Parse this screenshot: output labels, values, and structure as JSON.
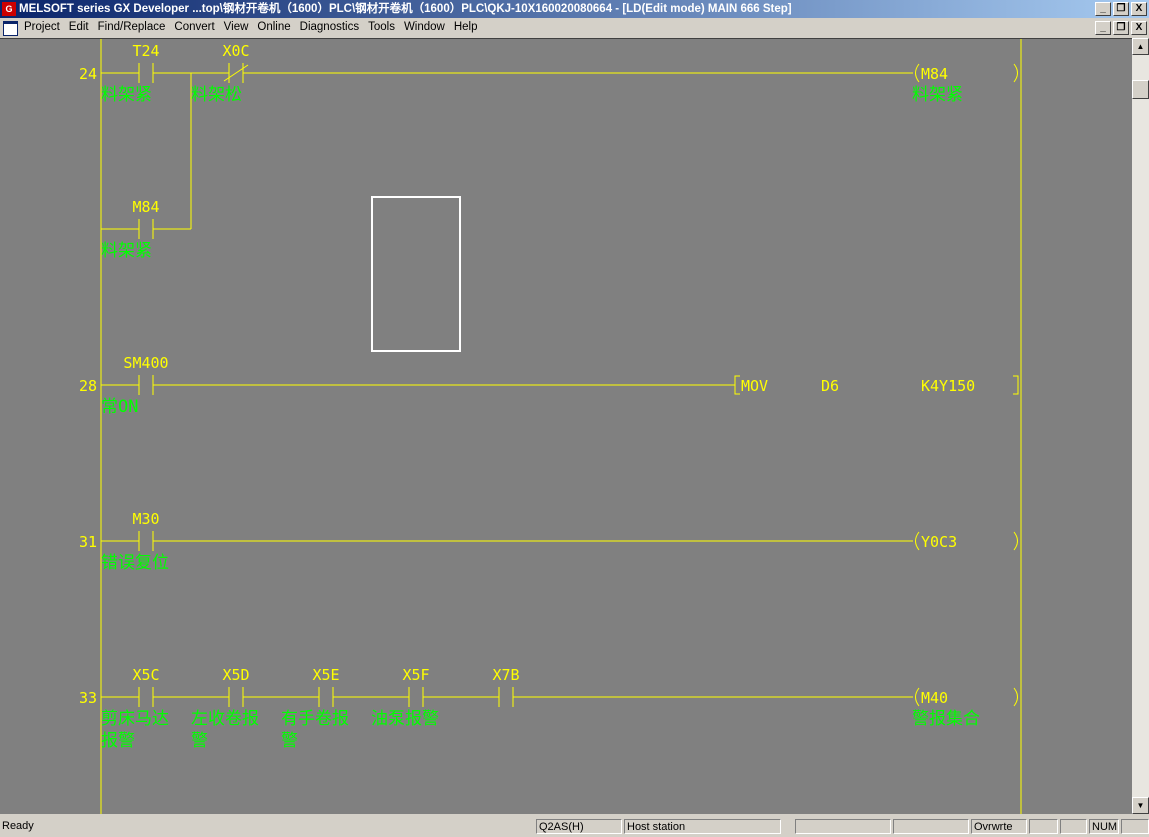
{
  "window": {
    "title": "MELSOFT series GX Developer ...top\\钢材开卷机（1600）PLC\\钢材开卷机（1600）PLC\\QKJ-10X160020080664 - [LD(Edit mode)    MAIN    666 Step]",
    "buttons": {
      "minimize": "_",
      "restore": "❐",
      "close": "X"
    }
  },
  "menu": [
    "Project",
    "Edit",
    "Find/Replace",
    "Convert",
    "View",
    "Online",
    "Diagnostics",
    "Tools",
    "Window",
    "Help"
  ],
  "colors": {
    "background": "#808080",
    "wire": "#ffff00",
    "device": "#ffff00",
    "comment": "#00ff00",
    "cursor": "#ffffff"
  },
  "ladder": {
    "rungs": [
      {
        "step": "24",
        "contacts": [
          {
            "device": "T24",
            "type": "NO",
            "comment": [
              "料架紧"
            ]
          },
          {
            "device": "X0C",
            "type": "NC",
            "comment": [
              "料架松"
            ]
          }
        ],
        "branch": [
          {
            "device": "M84",
            "type": "NO",
            "comment": [
              "料架紧"
            ]
          }
        ],
        "output": {
          "kind": "coil",
          "device": "M84",
          "comment": [
            "料架紧"
          ]
        }
      },
      {
        "step": "28",
        "contacts": [
          {
            "device": "SM400",
            "type": "NO",
            "comment": [
              "常ON"
            ]
          }
        ],
        "output": {
          "kind": "instruction",
          "op": "MOV",
          "args": [
            "D6",
            "K4Y150"
          ]
        }
      },
      {
        "step": "31",
        "contacts": [
          {
            "device": "M30",
            "type": "NO",
            "comment": [
              "错误复位"
            ]
          }
        ],
        "output": {
          "kind": "coil",
          "device": "Y0C3",
          "comment": []
        }
      },
      {
        "step": "33",
        "contacts": [
          {
            "device": "X5C",
            "type": "NO",
            "comment": [
              "剪床马达",
              "报警"
            ]
          },
          {
            "device": "X5D",
            "type": "NO",
            "comment": [
              "左收卷报",
              "警"
            ]
          },
          {
            "device": "X5E",
            "type": "NO",
            "comment": [
              "有手卷报",
              "警"
            ]
          },
          {
            "device": "X5F",
            "type": "NO",
            "comment": [
              "油泵报警"
            ]
          },
          {
            "device": "X7B",
            "type": "NO",
            "comment": []
          }
        ],
        "output": {
          "kind": "coil",
          "device": "M40",
          "comment": [
            "警报集合"
          ]
        }
      }
    ]
  },
  "status": {
    "ready": "Ready",
    "plc_type": "Q2AS(H)",
    "station": "Host station",
    "mode": "Ovrwrte",
    "num": "NUM"
  }
}
